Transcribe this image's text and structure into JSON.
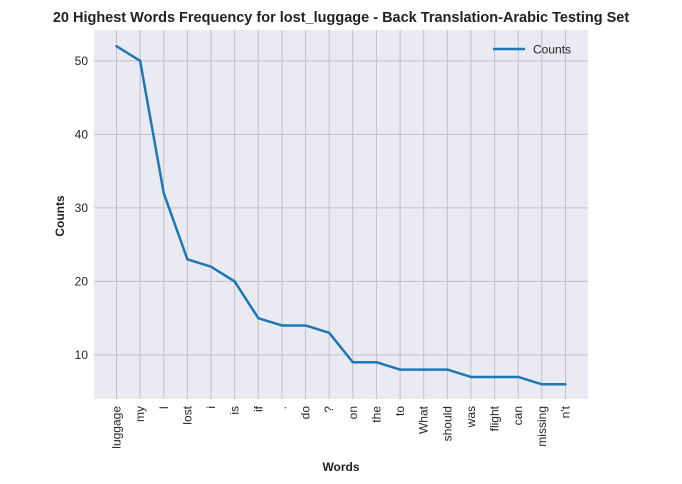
{
  "chart_data": {
    "type": "line",
    "title": "20 Highest Words Frequency for lost_luggage - Back Translation-Arabic Testing Set",
    "xlabel": "Words",
    "ylabel": "Counts",
    "categories": [
      "luggage",
      "my",
      "I",
      "lost",
      "i",
      "is",
      "if",
      ".",
      "do",
      "?",
      "on",
      "the",
      "to",
      "What",
      "should",
      "was",
      "flight",
      "can",
      "missing",
      "n't"
    ],
    "series": [
      {
        "name": "Counts",
        "values": [
          52,
          50,
          32,
          23,
          22,
          20,
          15,
          14,
          14,
          13,
          9,
          9,
          8,
          8,
          8,
          7,
          7,
          7,
          6,
          6
        ]
      }
    ],
    "ylim": [
      4,
      54.2
    ],
    "yticks": [
      10,
      20,
      30,
      40,
      50
    ],
    "grid": true,
    "legend_position": "top-right",
    "colors": {
      "line": "#1f77b4",
      "plot_background": "#eaeaf2",
      "grid": "#c0c0c8"
    }
  }
}
